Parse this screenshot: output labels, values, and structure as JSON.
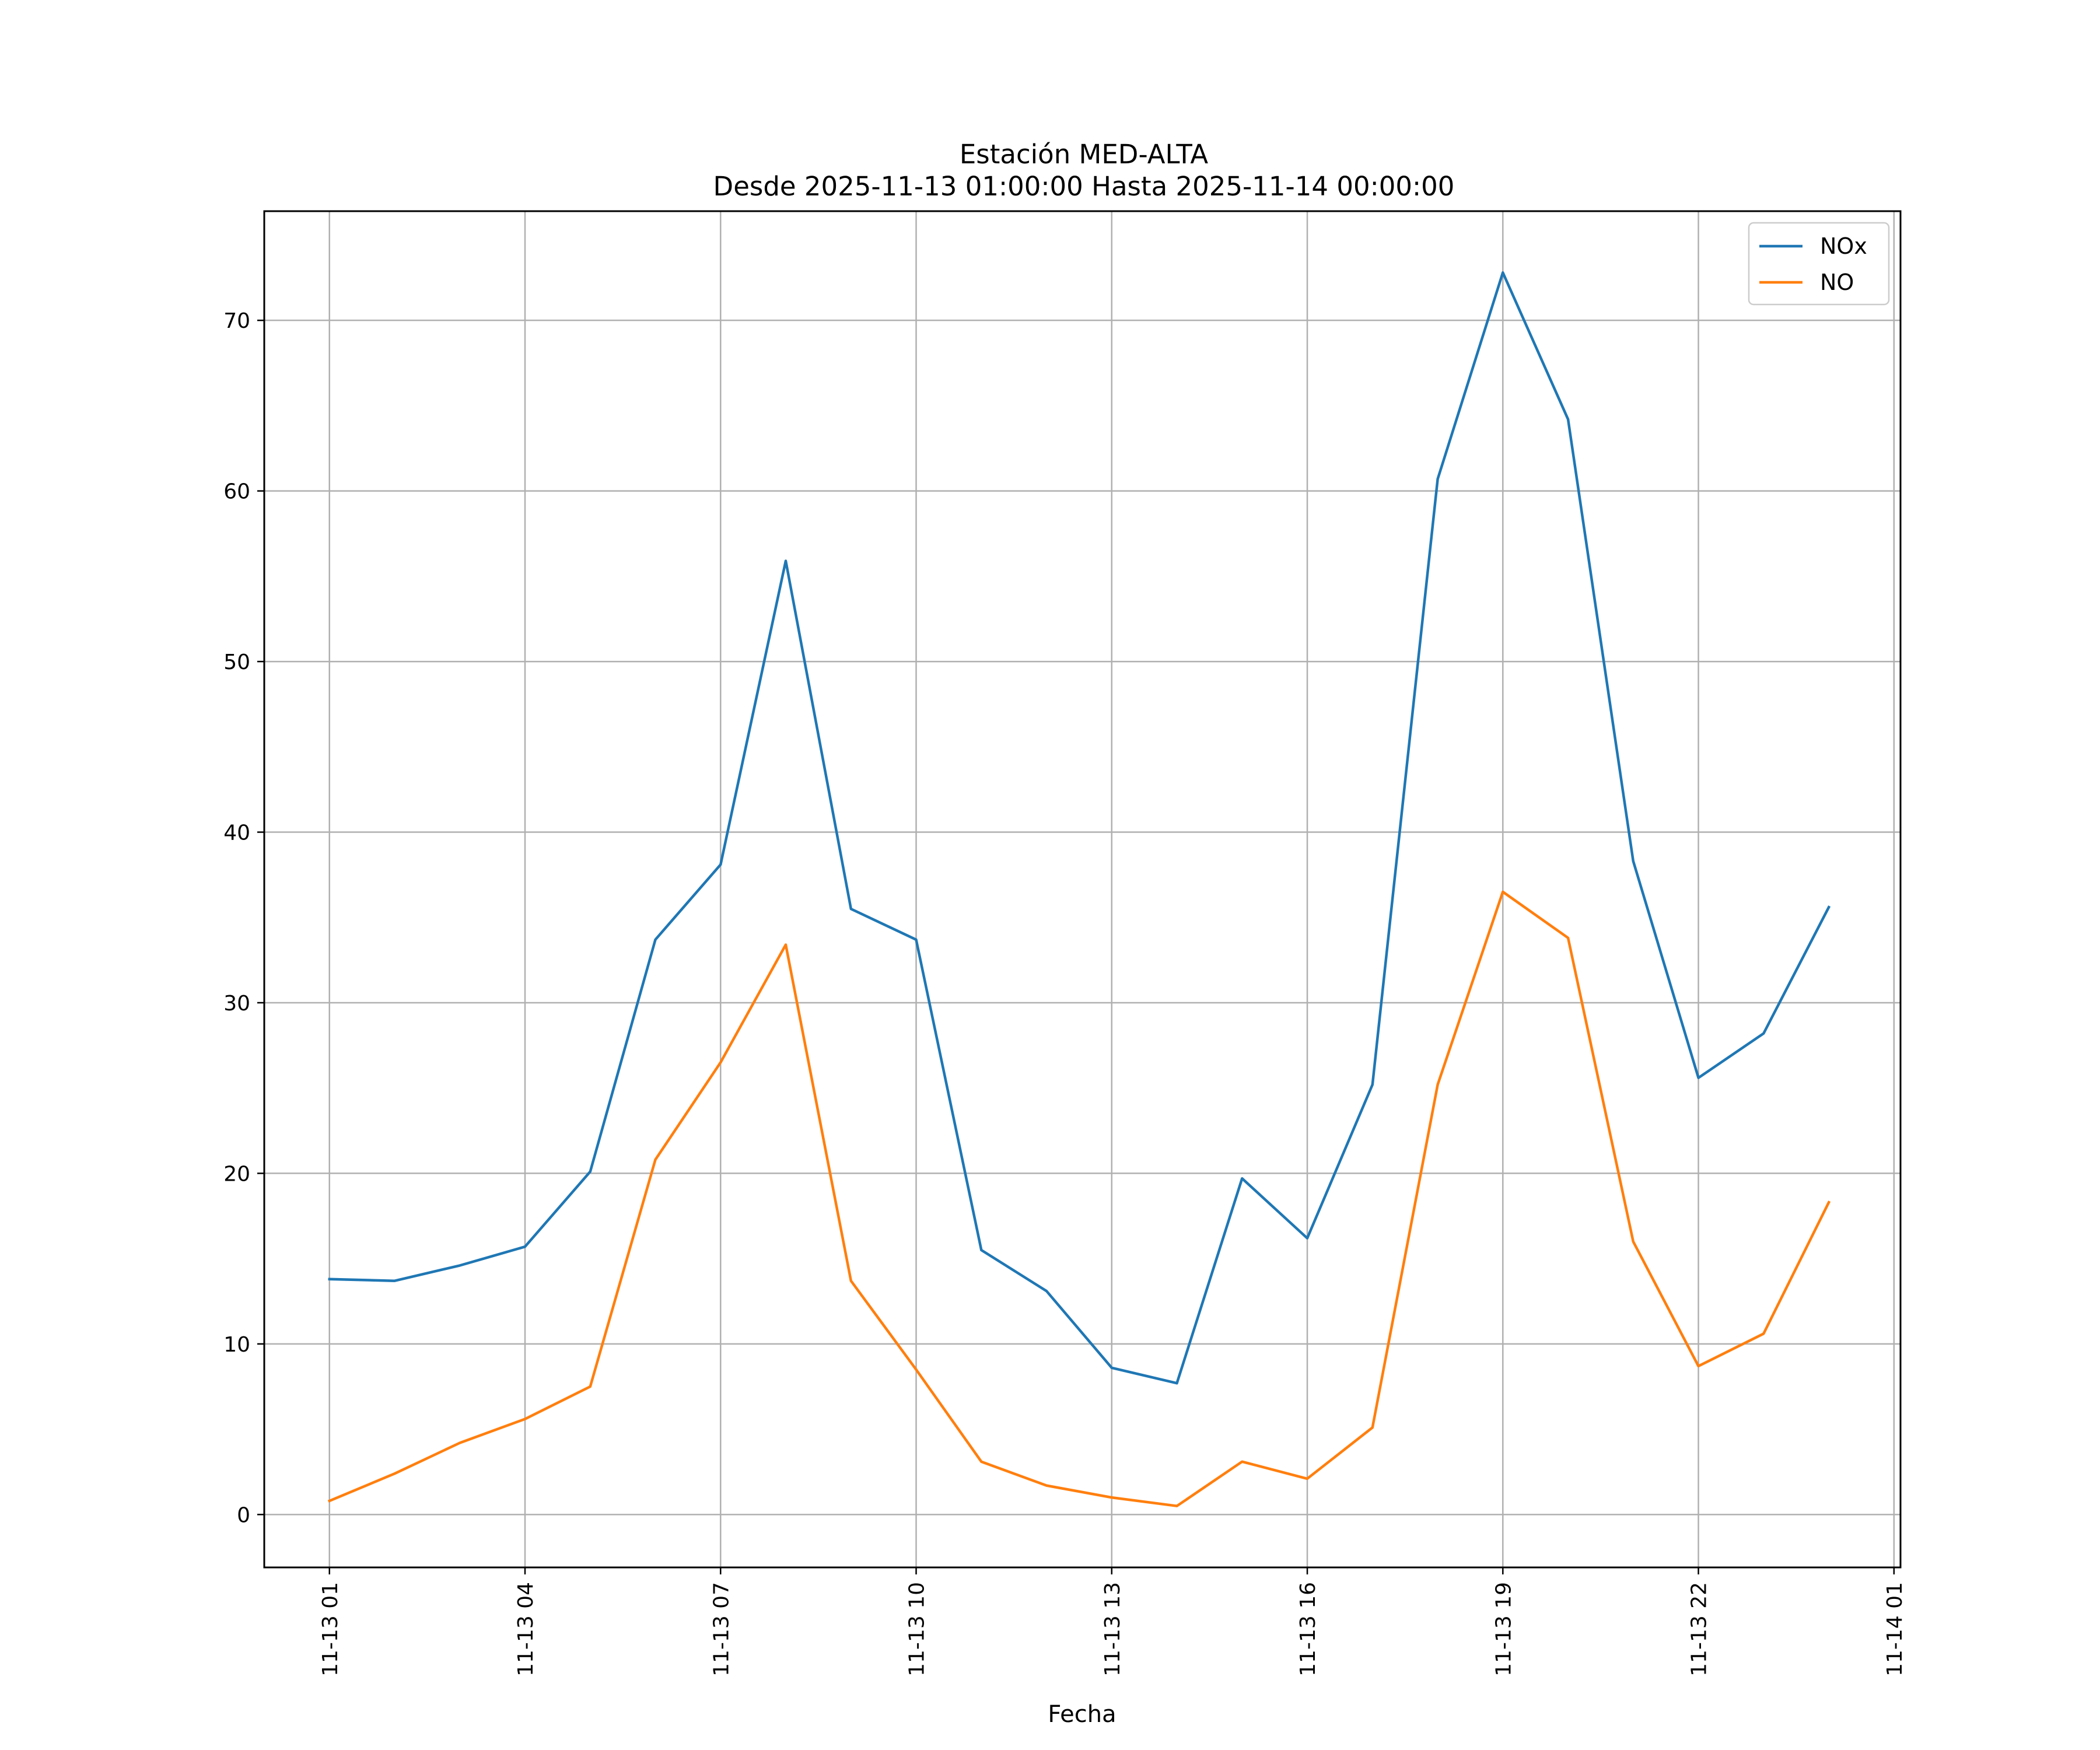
{
  "chart_data": {
    "type": "line",
    "title": "Estación MED-ALTA",
    "subtitle": "Desde 2025-11-13 01:00:00 Hasta 2025-11-14 00:00:00",
    "xlabel": "Fecha",
    "ylabel": "",
    "x": [
      "11-13 01",
      "11-13 02",
      "11-13 03",
      "11-13 04",
      "11-13 05",
      "11-13 06",
      "11-13 07",
      "11-13 08",
      "11-13 09",
      "11-13 10",
      "11-13 11",
      "11-13 12",
      "11-13 13",
      "11-13 14",
      "11-13 15",
      "11-13 16",
      "11-13 17",
      "11-13 18",
      "11-13 19",
      "11-13 20",
      "11-13 21",
      "11-13 22",
      "11-13 23",
      "11-14 00"
    ],
    "x_ticks": [
      "11-13 01",
      "11-13 04",
      "11-13 07",
      "11-13 10",
      "11-13 13",
      "11-13 16",
      "11-13 19",
      "11-13 22",
      "11-14 01"
    ],
    "y_ticks": [
      0,
      10,
      20,
      30,
      40,
      50,
      60,
      70
    ],
    "xlim": [
      "11-13 00:00",
      "11-14 01:06"
    ],
    "ylim": [
      -3.1,
      76.4
    ],
    "grid": true,
    "legend": "top-right",
    "series": [
      {
        "name": "NOx",
        "color": "#1f77b4",
        "values": [
          13.8,
          13.7,
          14.6,
          15.7,
          20.1,
          33.7,
          38.1,
          55.9,
          35.5,
          33.7,
          15.5,
          13.1,
          8.6,
          7.7,
          19.7,
          16.2,
          25.2,
          60.7,
          72.8,
          64.2,
          38.3,
          25.6,
          28.2,
          35.6
        ]
      },
      {
        "name": "NO",
        "color": "#ff7f0e",
        "values": [
          0.8,
          2.4,
          4.2,
          5.6,
          7.5,
          20.8,
          26.5,
          33.4,
          13.7,
          8.5,
          3.1,
          1.7,
          1.0,
          0.5,
          3.1,
          2.1,
          5.1,
          25.2,
          36.5,
          33.8,
          16.0,
          8.7,
          10.6,
          18.3
        ]
      }
    ]
  }
}
